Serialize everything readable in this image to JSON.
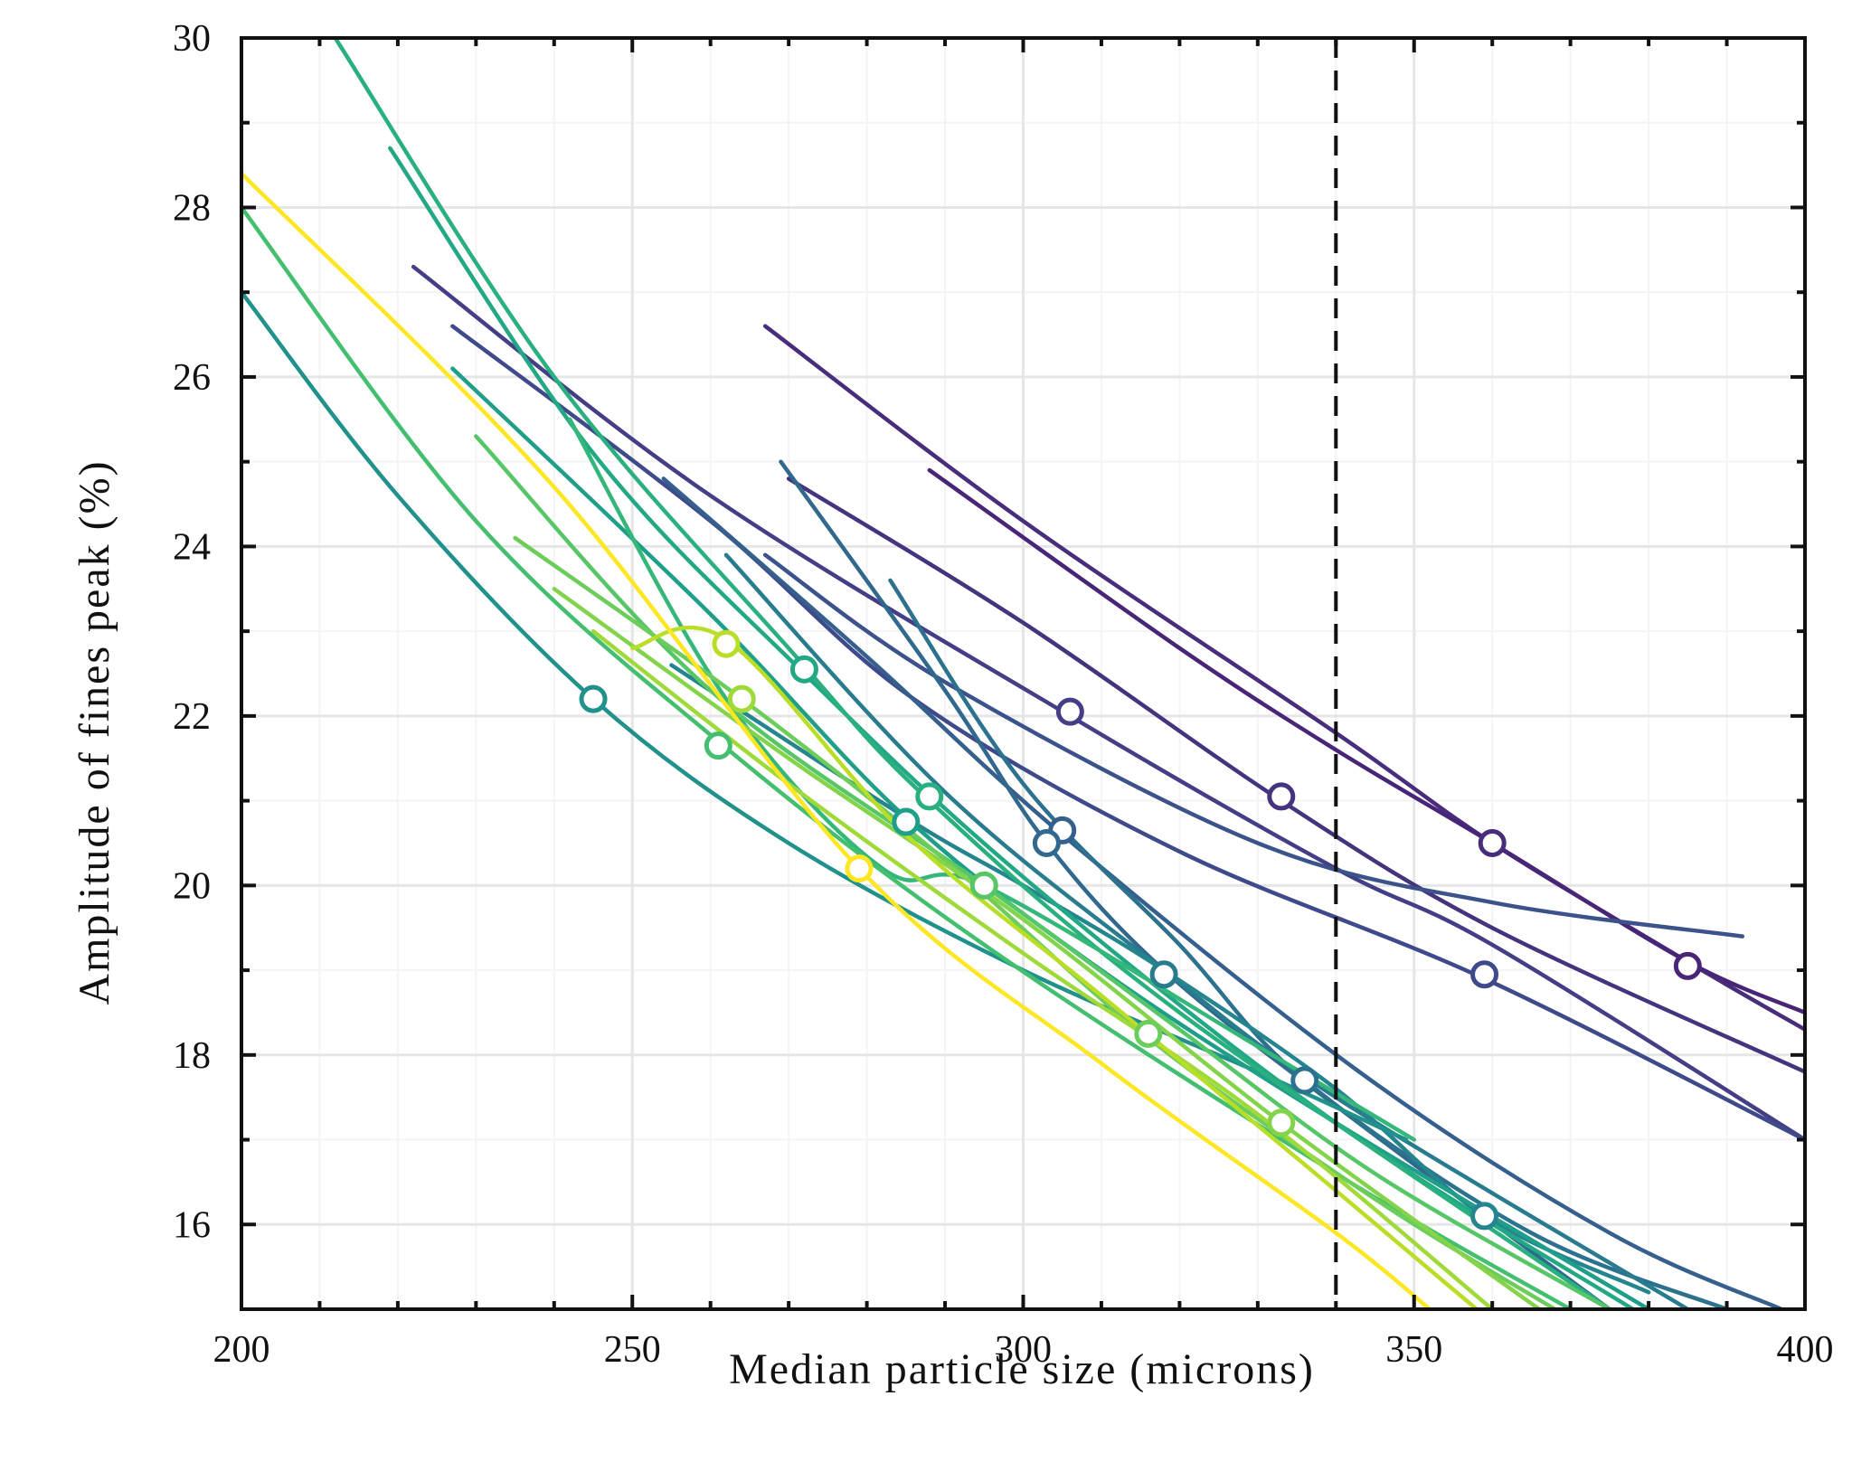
{
  "chart_data": {
    "type": "line",
    "title": "",
    "xlabel": "Median particle size (microns)",
    "ylabel": "Amplitude of fines peak (%)",
    "xlim": [
      200,
      400
    ],
    "ylim": [
      15,
      30
    ],
    "xticks": [
      200,
      250,
      300,
      350,
      400
    ],
    "xtick_labels": [
      "200",
      "250",
      "300",
      "350",
      "400"
    ],
    "yticks": [
      16,
      18,
      20,
      22,
      24,
      26,
      28,
      30
    ],
    "ytick_labels": [
      "16",
      "18",
      "20",
      "22",
      "24",
      "26",
      "28",
      "30"
    ],
    "grid": true,
    "legend": "none",
    "colormap": "viridis",
    "reference_line": {
      "orientation": "vertical",
      "x": 340,
      "style": "dashed",
      "color": "#111111"
    },
    "series": [
      {
        "color": "#472d7b",
        "points": [
          [
            267,
            26.6
          ],
          [
            300,
            24.3
          ],
          [
            340,
            21.8
          ],
          [
            360,
            20.5
          ],
          [
            385,
            19.1
          ],
          [
            400,
            18.3
          ]
        ],
        "marker": [
          360,
          20.5
        ]
      },
      {
        "color": "#482576",
        "points": [
          [
            288,
            24.9
          ],
          [
            320,
            22.8
          ],
          [
            340,
            21.6
          ],
          [
            360,
            20.5
          ],
          [
            385,
            19.1
          ],
          [
            400,
            18.5
          ]
        ],
        "marker": [
          385,
          19.05
        ]
      },
      {
        "color": "#46337e",
        "points": [
          [
            270,
            24.8
          ],
          [
            300,
            23.1
          ],
          [
            333,
            21.0
          ],
          [
            360,
            19.5
          ],
          [
            400,
            17.8
          ]
        ],
        "marker": [
          333,
          21.05
        ]
      },
      {
        "color": "#433e85",
        "points": [
          [
            222,
            27.3
          ],
          [
            260,
            24.6
          ],
          [
            306,
            22.0
          ],
          [
            340,
            20.2
          ],
          [
            360,
            19.3
          ],
          [
            400,
            17.0
          ]
        ],
        "marker": [
          306,
          22.05
        ]
      },
      {
        "color": "#3e4a89",
        "points": [
          [
            227,
            26.6
          ],
          [
            260,
            24.3
          ],
          [
            286,
            22.2
          ],
          [
            320,
            20.4
          ],
          [
            359,
            18.9
          ],
          [
            400,
            17.0
          ]
        ],
        "marker": [
          359,
          18.95
        ]
      },
      {
        "color": "#3b528b",
        "points": [
          [
            267,
            23.9
          ],
          [
            290,
            22.4
          ],
          [
            330,
            20.5
          ],
          [
            360,
            19.8
          ],
          [
            392,
            19.4
          ]
        ],
        "marker": null
      },
      {
        "color": "#355f8d",
        "points": [
          [
            254,
            24.8
          ],
          [
            280,
            22.7
          ],
          [
            305,
            20.6
          ],
          [
            343,
            17.8
          ],
          [
            375,
            15.9
          ],
          [
            397,
            15.0
          ]
        ],
        "marker": [
          305,
          20.65
        ]
      },
      {
        "color": "#31688e",
        "points": [
          [
            269,
            25.0
          ],
          [
            290,
            22.3
          ],
          [
            303,
            20.5
          ],
          [
            318,
            19.0
          ],
          [
            340,
            17.4
          ],
          [
            375,
            15.0
          ]
        ],
        "marker": [
          303,
          20.5
        ]
      },
      {
        "color": "#2c728e",
        "points": [
          [
            283,
            23.6
          ],
          [
            300,
            21.2
          ],
          [
            320,
            19.3
          ],
          [
            336,
            17.7
          ],
          [
            365,
            15.9
          ],
          [
            390,
            15.0
          ]
        ],
        "marker": [
          336,
          17.7
        ]
      },
      {
        "color": "#287c8e",
        "points": [
          [
            262,
            23.9
          ],
          [
            290,
            21.1
          ],
          [
            318,
            19.0
          ],
          [
            340,
            17.5
          ],
          [
            385,
            15.0
          ]
        ],
        "marker": [
          318,
          18.95
        ]
      },
      {
        "color": "#25858e",
        "points": [
          [
            255,
            22.6
          ],
          [
            285,
            20.8
          ],
          [
            300,
            20.0
          ],
          [
            318,
            19.0
          ],
          [
            340,
            17.6
          ],
          [
            359,
            16.1
          ],
          [
            380,
            15.2
          ]
        ],
        "marker": [
          359,
          16.1
        ]
      },
      {
        "color": "#21918c",
        "points": [
          [
            200,
            27.0
          ],
          [
            220,
            24.6
          ],
          [
            245,
            22.2
          ],
          [
            270,
            20.5
          ],
          [
            300,
            19.0
          ],
          [
            330,
            17.8
          ],
          [
            349,
            17.0
          ]
        ],
        "marker": [
          245,
          22.2
        ]
      },
      {
        "color": "#1f9e89",
        "points": [
          [
            227,
            26.1
          ],
          [
            260,
            23.2
          ],
          [
            285,
            20.8
          ],
          [
            310,
            19.0
          ],
          [
            340,
            17.2
          ],
          [
            380,
            15.0
          ]
        ],
        "marker": [
          285,
          20.75
        ]
      },
      {
        "color": "#22a884",
        "points": [
          [
            219,
            28.7
          ],
          [
            245,
            25.1
          ],
          [
            272,
            22.5
          ],
          [
            300,
            20.1
          ],
          [
            340,
            17.2
          ],
          [
            378,
            15.0
          ]
        ],
        "marker": [
          272,
          22.55
        ]
      },
      {
        "color": "#2ab07f",
        "points": [
          [
            212,
            30.0
          ],
          [
            240,
            26.0
          ],
          [
            270,
            22.8
          ],
          [
            288,
            21.0
          ],
          [
            320,
            18.5
          ],
          [
            375,
            15.0
          ]
        ],
        "marker": [
          288,
          21.05
        ]
      },
      {
        "color": "#35b779",
        "points": [
          [
            242,
            25.5
          ],
          [
            262,
            22.2
          ],
          [
            282,
            20.2
          ],
          [
            295,
            20.0
          ],
          [
            330,
            18.1
          ],
          [
            350,
            17.0
          ]
        ],
        "marker": null
      },
      {
        "color": "#44bf70",
        "points": [
          [
            200,
            28.0
          ],
          [
            230,
            24.3
          ],
          [
            261,
            21.7
          ],
          [
            295,
            19.3
          ],
          [
            340,
            16.6
          ],
          [
            370,
            15.0
          ]
        ],
        "marker": [
          261,
          21.65
        ]
      },
      {
        "color": "#56c667",
        "points": [
          [
            230,
            25.3
          ],
          [
            260,
            22.3
          ],
          [
            295,
            20.0
          ],
          [
            320,
            18.3
          ],
          [
            345,
            16.6
          ],
          [
            375,
            15.0
          ]
        ],
        "marker": [
          295,
          20.0
        ]
      },
      {
        "color": "#6ccd5a",
        "points": [
          [
            235,
            24.1
          ],
          [
            264,
            22.2
          ],
          [
            290,
            20.3
          ],
          [
            316,
            18.2
          ],
          [
            345,
            16.3
          ],
          [
            368,
            15.0
          ]
        ],
        "marker": [
          316,
          18.25
        ]
      },
      {
        "color": "#84d44b",
        "points": [
          [
            240,
            23.5
          ],
          [
            270,
            21.5
          ],
          [
            300,
            19.6
          ],
          [
            333,
            17.2
          ],
          [
            366,
            15.0
          ]
        ],
        "marker": [
          333,
          17.2
        ]
      },
      {
        "color": "#9fda3a",
        "points": [
          [
            245,
            23.0
          ],
          [
            270,
            21.2
          ],
          [
            300,
            19.2
          ],
          [
            330,
            17.3
          ],
          [
            360,
            15.0
          ]
        ],
        "marker": [
          264,
          22.2
        ]
      },
      {
        "color": "#bade28",
        "points": [
          [
            250,
            22.8
          ],
          [
            262,
            22.9
          ],
          [
            285,
            20.6
          ],
          [
            310,
            18.7
          ],
          [
            340,
            16.4
          ],
          [
            358,
            15.0
          ]
        ],
        "marker": [
          262,
          22.85
        ]
      },
      {
        "color": "#fde725",
        "points": [
          [
            200,
            28.4
          ],
          [
            240,
            24.7
          ],
          [
            279,
            20.2
          ],
          [
            310,
            17.9
          ],
          [
            340,
            15.9
          ],
          [
            352,
            15.0
          ]
        ],
        "marker": [
          279,
          20.2
        ]
      }
    ]
  }
}
